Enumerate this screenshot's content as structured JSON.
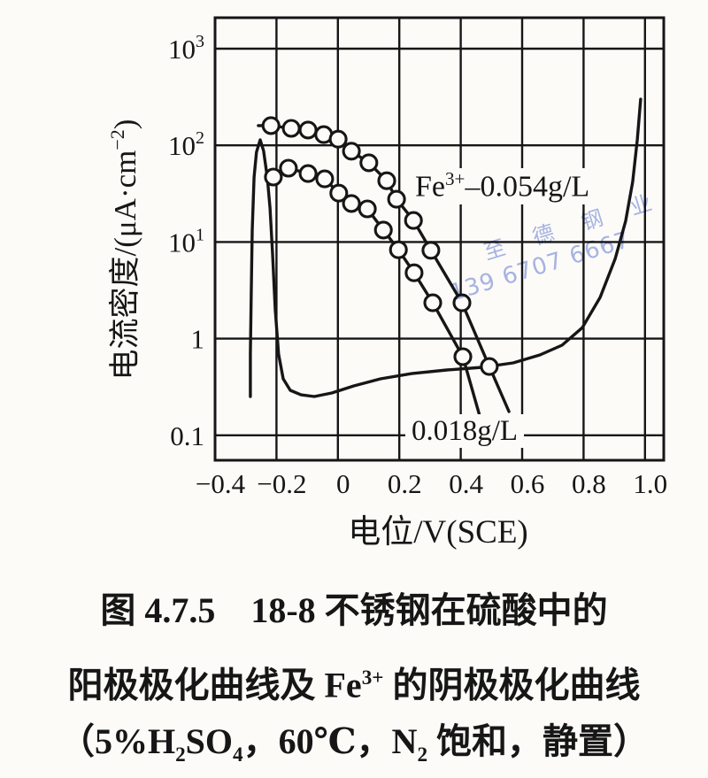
{
  "page": {
    "background": "#fcfbf8",
    "ink": "#161616"
  },
  "watermark": {
    "text_cn": "至德钢业",
    "text_phone": "139 6707 6667",
    "color": "#a8b6e8"
  },
  "chart_data": {
    "type": "line",
    "title": "",
    "grid": true,
    "x_axis": {
      "label": "电位/V(SCE)",
      "range": [
        -0.4,
        1.06
      ],
      "ticks": [
        {
          "v": -0.4,
          "label": "−0.4"
        },
        {
          "v": -0.2,
          "label": "−0.2"
        },
        {
          "v": 0,
          "label": "0"
        },
        {
          "v": 0.2,
          "label": "0.2"
        },
        {
          "v": 0.4,
          "label": "0.4"
        },
        {
          "v": 0.6,
          "label": "0.6"
        },
        {
          "v": 0.8,
          "label": "0.8"
        },
        {
          "v": 1.0,
          "label": "1.0"
        }
      ]
    },
    "y_axis": {
      "label_rich": [
        {
          "t": "电流密度/(μA·cm"
        },
        {
          "sup": "−2"
        },
        {
          "t": ")"
        }
      ],
      "scale": "log",
      "range": [
        0.055,
        2200
      ],
      "ticks": [
        {
          "i": 1000,
          "base": "10",
          "sup": "3"
        },
        {
          "i": 100,
          "base": "10",
          "sup": "2"
        },
        {
          "i": 10,
          "base": "10",
          "sup": "1"
        },
        {
          "i": 1,
          "base": "1",
          "sup": ""
        },
        {
          "i": 0.1,
          "base": "0.1",
          "sup": ""
        }
      ]
    },
    "series": [
      {
        "name": "anodic-polarization-18-8-stainless-steel",
        "marker": "none",
        "points": [
          [
            -0.285,
            0.252
          ],
          [
            -0.285,
            0.69
          ],
          [
            -0.282,
            3.0
          ],
          [
            -0.279,
            13.2
          ],
          [
            -0.273,
            47
          ],
          [
            -0.265,
            85
          ],
          [
            -0.253,
            114
          ],
          [
            -0.242,
            88
          ],
          [
            -0.23,
            47
          ],
          [
            -0.221,
            22.5
          ],
          [
            -0.213,
            7.8
          ],
          [
            -0.204,
            2.0
          ],
          [
            -0.193,
            0.69
          ],
          [
            -0.178,
            0.384
          ],
          [
            -0.155,
            0.292
          ],
          [
            -0.12,
            0.262
          ],
          [
            -0.077,
            0.252
          ],
          [
            -0.02,
            0.274
          ],
          [
            0.052,
            0.324
          ],
          [
            0.139,
            0.384
          ],
          [
            0.24,
            0.435
          ],
          [
            0.355,
            0.474
          ],
          [
            0.47,
            0.505
          ],
          [
            0.571,
            0.561
          ],
          [
            0.658,
            0.678
          ],
          [
            0.73,
            0.855
          ],
          [
            0.796,
            1.3
          ],
          [
            0.854,
            2.67
          ],
          [
            0.903,
            6.7
          ],
          [
            0.937,
            16.4
          ],
          [
            0.96,
            42
          ],
          [
            0.975,
            114
          ],
          [
            0.986,
            300
          ]
        ]
      },
      {
        "name": "cathodic-polarization-Fe3-0.054gL",
        "marker": "circle",
        "head": [
          -0.259,
          160
        ],
        "points": [
          [
            -0.218,
            160
          ],
          [
            -0.152,
            150
          ],
          [
            -0.097,
            144
          ],
          [
            -0.046,
            129
          ],
          [
            0.001,
            116
          ],
          [
            0.044,
            87
          ],
          [
            0.101,
            66
          ],
          [
            0.159,
            43
          ],
          [
            0.191,
            27.7
          ],
          [
            0.246,
            16.7
          ],
          [
            0.303,
            8.2
          ],
          [
            0.404,
            2.35
          ],
          [
            0.493,
            0.515
          ]
        ],
        "tail": [
          0.557,
          0.176
        ]
      },
      {
        "name": "cathodic-polarization-Fe3-0.018gL",
        "marker": "circle",
        "head": [
          -0.23,
          54
        ],
        "points": [
          [
            -0.21,
            47
          ],
          [
            -0.161,
            58
          ],
          [
            -0.097,
            51
          ],
          [
            -0.043,
            45
          ],
          [
            0.003,
            32
          ],
          [
            0.044,
            25
          ],
          [
            0.096,
            22
          ],
          [
            0.148,
            13.3
          ],
          [
            0.197,
            8.3
          ],
          [
            0.248,
            4.8
          ],
          [
            0.309,
            2.35
          ],
          [
            0.407,
            0.65
          ]
        ],
        "tail": [
          0.462,
          0.158
        ]
      }
    ],
    "annotations": {
      "upper_rich": [
        {
          "t": "Fe"
        },
        {
          "sup": "3+"
        },
        {
          "t": "–0.054g/L"
        }
      ],
      "lower_rich": [
        {
          "t": "0.018g/L"
        }
      ]
    }
  },
  "caption": {
    "line1_rich": [
      {
        "t": "图 4.7.5　18-8 不锈钢在硫酸中的"
      }
    ],
    "line2_rich": [
      {
        "t": "阳极极化曲线及 Fe"
      },
      {
        "sup": "3+"
      },
      {
        "t": " 的阴极极化曲线"
      }
    ],
    "line3_rich": [
      {
        "t": "（5%H"
      },
      {
        "sub": "2"
      },
      {
        "t": "SO"
      },
      {
        "sub": "4"
      },
      {
        "t": "，60℃，N"
      },
      {
        "sub": "2"
      },
      {
        "t": " 饱和，静置）"
      }
    ]
  }
}
